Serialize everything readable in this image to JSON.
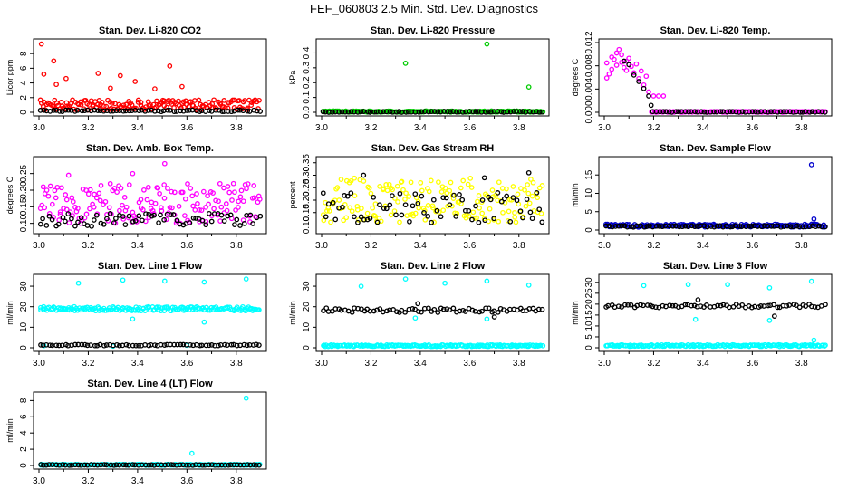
{
  "title": "FEF_060803  2.5 Min. Std. Dev. Diagnostics",
  "colors": {
    "co2": "#ff0000",
    "pressure": "#00cc00",
    "temp": "#ff00ff",
    "rh": "#ffff00",
    "sample_flow": "#0000cc",
    "line_flow": "#00ffff",
    "secondary": "#000000"
  },
  "chart_data": [
    {
      "type": "scatter",
      "title": "Stan. Dev. Li-820 CO2",
      "ylabel": "Licor ppm",
      "xlim": [
        3.0,
        3.9
      ],
      "ylim": [
        0,
        9.5
      ],
      "xticks": [
        "3.0",
        "3.2",
        "3.4",
        "3.6",
        "3.8"
      ],
      "yticks": [
        "0",
        "2",
        "4",
        "6",
        "8"
      ],
      "series": [
        {
          "name": "primary",
          "color": "#ff0000",
          "base": 1.0,
          "spread": 0.7,
          "outliers": [
            [
              3.01,
              9.3
            ],
            [
              3.06,
              7.0
            ],
            [
              3.02,
              5.2
            ],
            [
              3.24,
              5.3
            ],
            [
              3.33,
              5.0
            ],
            [
              3.53,
              6.3
            ],
            [
              3.11,
              4.6
            ],
            [
              3.39,
              4.2
            ],
            [
              3.58,
              3.5
            ],
            [
              3.07,
              3.8
            ],
            [
              3.29,
              3.3
            ],
            [
              3.47,
              3.2
            ]
          ]
        },
        {
          "name": "secondary",
          "color": "#000000",
          "base": 0.2,
          "spread": 0.1,
          "outliers": []
        }
      ]
    },
    {
      "type": "scatter",
      "title": "Stan. Dev. Li-820 Pressure",
      "ylabel": "kPa",
      "xlim": [
        3.0,
        3.9
      ],
      "ylim": [
        0,
        0.47
      ],
      "xticks": [
        "3.0",
        "3.2",
        "3.4",
        "3.6",
        "3.8"
      ],
      "yticks": [
        "0.0",
        "0.1",
        "0.2",
        "0.3",
        "0.4"
      ],
      "series": [
        {
          "name": "primary",
          "color": "#00cc00",
          "base": 0.005,
          "spread": 0.004,
          "outliers": [
            [
              3.67,
              0.46
            ],
            [
              3.34,
              0.33
            ],
            [
              3.84,
              0.17
            ]
          ]
        },
        {
          "name": "secondary",
          "color": "#000000",
          "base": 0.003,
          "spread": 0.003,
          "outliers": []
        }
      ]
    },
    {
      "type": "scatter",
      "title": "Stan. Dev. Li-820 Temp.",
      "ylabel": "degrees C",
      "xlim": [
        3.0,
        3.9
      ],
      "ylim": [
        0,
        0.012
      ],
      "xticks": [
        "3.0",
        "3.2",
        "3.4",
        "3.6",
        "3.8"
      ],
      "yticks": [
        "0.000",
        "0.004",
        "0.008",
        "0.012"
      ],
      "series": [
        {
          "name": "primary",
          "color": "#ff00ff",
          "base": 0.0,
          "spread": 0.0001,
          "outliers": [
            [
              3.01,
              0.0085
            ],
            [
              3.03,
              0.0095
            ],
            [
              3.05,
              0.0102
            ],
            [
              3.07,
              0.0099
            ],
            [
              3.09,
              0.0088
            ],
            [
              3.11,
              0.0079
            ],
            [
              3.13,
              0.0083
            ],
            [
              3.15,
              0.0071
            ],
            [
              3.17,
              0.0062
            ],
            [
              3.02,
              0.0066
            ],
            [
              3.04,
              0.0091
            ],
            [
              3.06,
              0.0108
            ],
            [
              3.08,
              0.0077
            ],
            [
              3.1,
              0.0093
            ],
            [
              3.12,
              0.0068
            ],
            [
              3.14,
              0.0058
            ],
            [
              3.16,
              0.0047
            ],
            [
              3.18,
              0.0035
            ],
            [
              3.2,
              0.0028
            ],
            [
              3.22,
              0.0028
            ],
            [
              3.24,
              0.0028
            ],
            [
              3.01,
              0.0059
            ],
            [
              3.03,
              0.0074
            ],
            [
              3.05,
              0.0081
            ],
            [
              3.07,
              0.0086
            ],
            [
              3.09,
              0.0072
            ]
          ]
        },
        {
          "name": "secondary",
          "color": "#000000",
          "base": 0.0,
          "spread": 0.0001,
          "outliers": [
            [
              3.08,
              0.0088
            ],
            [
              3.1,
              0.0082
            ],
            [
              3.12,
              0.0064
            ],
            [
              3.14,
              0.0053
            ],
            [
              3.16,
              0.0041
            ],
            [
              3.18,
              0.0028
            ],
            [
              3.19,
              0.0012
            ]
          ]
        }
      ]
    },
    {
      "type": "scatter",
      "title": "Stan. Dev. Amb. Box Temp.",
      "ylabel": "degrees C",
      "xlim": [
        3.0,
        3.9
      ],
      "ylim": [
        0.08,
        0.29
      ],
      "xticks": [
        "3.0",
        "3.2",
        "3.4",
        "3.6",
        "3.8"
      ],
      "yticks": [
        "0.10",
        "0.15",
        "0.20",
        "0.25"
      ],
      "series": [
        {
          "name": "primary",
          "color": "#ff00ff",
          "base": 0.16,
          "spread": 0.06,
          "outliers": [
            [
              3.51,
              0.28
            ],
            [
              3.38,
              0.25
            ],
            [
              3.12,
              0.245
            ]
          ]
        },
        {
          "name": "secondary",
          "color": "#000000",
          "base": 0.11,
          "spread": 0.02,
          "outliers": []
        }
      ]
    },
    {
      "type": "scatter",
      "title": "Stan. Dev. Gas Stream RH",
      "ylabel": "percent",
      "xlim": [
        3.0,
        3.9
      ],
      "ylim": [
        0.08,
        0.36
      ],
      "xticks": [
        "3.0",
        "3.2",
        "3.4",
        "3.6",
        "3.8"
      ],
      "yticks": [
        "0.10",
        "0.15",
        "0.20",
        "0.25",
        "0.30",
        "0.35"
      ],
      "series": [
        {
          "name": "primary",
          "color": "#ffff00",
          "base": 0.2,
          "spread": 0.09,
          "outliers": []
        },
        {
          "name": "secondary",
          "color": "#000000",
          "base": 0.17,
          "spread": 0.06,
          "outliers": [
            [
              3.17,
              0.3
            ],
            [
              3.84,
              0.31
            ],
            [
              3.66,
              0.29
            ]
          ]
        }
      ]
    },
    {
      "type": "scatter",
      "title": "Stan. Dev. Sample Flow",
      "ylabel": "ml/min",
      "xlim": [
        3.0,
        3.9
      ],
      "ylim": [
        0,
        19
      ],
      "xticks": [
        "3.0",
        "3.2",
        "3.4",
        "3.6",
        "3.8"
      ],
      "yticks": [
        "0",
        "5",
        "10",
        "15"
      ],
      "series": [
        {
          "name": "primary",
          "color": "#0000cc",
          "base": 1.2,
          "spread": 0.4,
          "outliers": [
            [
              3.84,
              17.8
            ],
            [
              3.85,
              3.0
            ]
          ]
        },
        {
          "name": "secondary",
          "color": "#000000",
          "base": 1.0,
          "spread": 0.2,
          "outliers": []
        }
      ]
    },
    {
      "type": "scatter",
      "title": "Stan. Dev. Line 1 Flow",
      "ylabel": "ml/min",
      "xlim": [
        3.0,
        3.9
      ],
      "ylim": [
        0,
        34
      ],
      "xticks": [
        "3.0",
        "3.2",
        "3.4",
        "3.6",
        "3.8"
      ],
      "yticks": [
        "0",
        "10",
        "20",
        "30"
      ],
      "series": [
        {
          "name": "primary",
          "color": "#00ffff",
          "base": 19.0,
          "spread": 1.0,
          "outliers": [
            [
              3.16,
              31.5
            ],
            [
              3.34,
              33.0
            ],
            [
              3.51,
              32.5
            ],
            [
              3.67,
              32.0
            ],
            [
              3.84,
              33.5
            ],
            [
              3.38,
              14.0
            ],
            [
              3.67,
              12.5
            ],
            [
              3.02,
              1.0
            ],
            [
              3.3,
              0.8
            ],
            [
              3.6,
              1.2
            ]
          ]
        },
        {
          "name": "secondary",
          "color": "#000000",
          "base": 1.3,
          "spread": 0.3,
          "outliers": []
        }
      ]
    },
    {
      "type": "scatter",
      "title": "Stan. Dev. Line 2 Flow",
      "ylabel": "ml/min",
      "xlim": [
        3.0,
        3.9
      ],
      "ylim": [
        0,
        34
      ],
      "xticks": [
        "3.0",
        "3.2",
        "3.4",
        "3.6",
        "3.8"
      ],
      "yticks": [
        "0",
        "10",
        "20",
        "30"
      ],
      "series": [
        {
          "name": "primary",
          "color": "#00ffff",
          "base": 1.0,
          "spread": 0.4,
          "outliers": [
            [
              3.16,
              30.0
            ],
            [
              3.34,
              33.5
            ],
            [
              3.5,
              31.5
            ],
            [
              3.67,
              32.5
            ],
            [
              3.84,
              30.5
            ],
            [
              3.38,
              14.5
            ],
            [
              3.67,
              14.0
            ]
          ]
        },
        {
          "name": "secondary",
          "color": "#000000",
          "base": 18.3,
          "spread": 1.1,
          "outliers": [
            [
              3.39,
              21.5
            ],
            [
              3.7,
              15.0
            ]
          ]
        }
      ]
    },
    {
      "type": "scatter",
      "title": "Stan. Dev. Line 3 Flow",
      "ylabel": "ml/min",
      "xlim": [
        3.0,
        3.9
      ],
      "ylim": [
        0,
        32
      ],
      "xticks": [
        "3.0",
        "3.2",
        "3.4",
        "3.6",
        "3.8"
      ],
      "yticks": [
        "0",
        "5",
        "10",
        "15",
        "20",
        "25",
        "30"
      ],
      "series": [
        {
          "name": "primary",
          "color": "#00ffff",
          "base": 1.0,
          "spread": 0.4,
          "outliers": [
            [
              3.16,
              28.5
            ],
            [
              3.34,
              29.0
            ],
            [
              3.5,
              29.0
            ],
            [
              3.67,
              27.5
            ],
            [
              3.84,
              30.5
            ],
            [
              3.37,
              13.0
            ],
            [
              3.67,
              12.5
            ],
            [
              3.85,
              3.5
            ]
          ]
        },
        {
          "name": "secondary",
          "color": "#000000",
          "base": 19.2,
          "spread": 0.8,
          "outliers": [
            [
              3.38,
              22.0
            ],
            [
              3.69,
              14.5
            ]
          ]
        }
      ]
    },
    {
      "type": "scatter",
      "title": "Stan. Dev. Line 4 (LT) Flow",
      "ylabel": "ml/min",
      "xlim": [
        3.0,
        3.9
      ],
      "ylim": [
        0,
        8.6
      ],
      "xticks": [
        "3.0",
        "3.2",
        "3.4",
        "3.6",
        "3.8"
      ],
      "yticks": [
        "0",
        "2",
        "4",
        "6",
        "8"
      ],
      "series": [
        {
          "name": "primary",
          "color": "#00ffff",
          "base": 0.08,
          "spread": 0.06,
          "outliers": [
            [
              3.84,
              8.3
            ],
            [
              3.62,
              1.5
            ]
          ]
        },
        {
          "name": "secondary",
          "color": "#000000",
          "base": 0.06,
          "spread": 0.04,
          "outliers": []
        }
      ]
    }
  ]
}
